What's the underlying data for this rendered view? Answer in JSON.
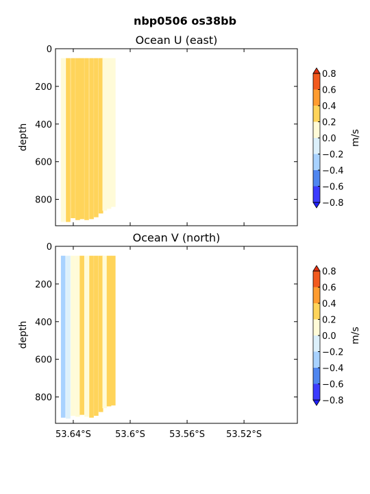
{
  "figure": {
    "suptitle": "nbp0506 os38bb"
  },
  "chart_data": [
    {
      "type": "heatmap",
      "title": "Ocean U (east)",
      "xlabel": "",
      "ylabel": "depth",
      "xlim": [
        53.6525,
        53.4825
      ],
      "ylim": [
        940,
        0
      ],
      "x_ticks": [
        53.64,
        53.6,
        53.56,
        53.52
      ],
      "x_tick_labels": [
        "53.64°S",
        "53.6°S",
        "53.56°S",
        "53.52°S"
      ],
      "y_ticks": [
        0,
        200,
        400,
        600,
        800
      ],
      "y_tick_labels": [
        "0",
        "200",
        "400",
        "600",
        "800"
      ],
      "colorbar": {
        "label": "m/s",
        "levels": [
          -0.8,
          -0.6,
          -0.4,
          -0.2,
          0.0,
          0.2,
          0.4,
          0.6,
          0.8
        ],
        "tick_labels": [
          "−0.8",
          "−0.6",
          "−0.4",
          "−0.2",
          "0.0",
          "0.2",
          "0.4",
          "0.6",
          "0.8"
        ],
        "colors": [
          "#3b3bff",
          "#4f86f0",
          "#a8d2ff",
          "#dcf0fb",
          "#fffbd8",
          "#ffd45a",
          "#ff9c30",
          "#f25a1e"
        ],
        "extend_low_color": "#2020ff",
        "extend_high_color": "#e03010"
      },
      "columns": [
        {
          "lat": 53.6487,
          "value": 0.1,
          "top": 50,
          "bottom": 920
        },
        {
          "lat": 53.6452,
          "value": 0.25,
          "top": 50,
          "bottom": 920
        },
        {
          "lat": 53.6418,
          "value": 0.25,
          "top": 50,
          "bottom": 900
        },
        {
          "lat": 53.6385,
          "value": 0.25,
          "top": 50,
          "bottom": 910
        },
        {
          "lat": 53.6355,
          "value": 0.25,
          "top": 50,
          "bottom": 905
        },
        {
          "lat": 53.6322,
          "value": 0.35,
          "top": 50,
          "bottom": 910
        },
        {
          "lat": 53.6288,
          "value": 0.3,
          "top": 50,
          "bottom": 905
        },
        {
          "lat": 53.6255,
          "value": 0.2,
          "top": 50,
          "bottom": 895
        },
        {
          "lat": 53.6222,
          "value": 0.2,
          "top": 50,
          "bottom": 875
        },
        {
          "lat": 53.6195,
          "value": 0.1,
          "top": 50,
          "bottom": 860
        },
        {
          "lat": 53.6165,
          "value": 0.0,
          "top": 50,
          "bottom": 850
        },
        {
          "lat": 53.6135,
          "value": 0.05,
          "top": 50,
          "bottom": 840
        }
      ]
    },
    {
      "type": "heatmap",
      "title": "Ocean V (north)",
      "xlabel": "",
      "ylabel": "depth",
      "xlim": [
        53.6525,
        53.4825
      ],
      "ylim": [
        940,
        0
      ],
      "x_ticks": [
        53.64,
        53.6,
        53.56,
        53.52
      ],
      "x_tick_labels": [
        "53.64°S",
        "53.6°S",
        "53.56°S",
        "53.52°S"
      ],
      "y_ticks": [
        0,
        200,
        400,
        600,
        800
      ],
      "y_tick_labels": [
        "0",
        "200",
        "400",
        "600",
        "800"
      ],
      "colorbar": {
        "label": "m/s",
        "levels": [
          -0.8,
          -0.6,
          -0.4,
          -0.2,
          0.0,
          0.2,
          0.4,
          0.6,
          0.8
        ],
        "tick_labels": [
          "−0.8",
          "−0.6",
          "−0.4",
          "−0.2",
          "0.0",
          "0.2",
          "0.4",
          "0.6",
          "0.8"
        ],
        "colors": [
          "#3b3bff",
          "#4f86f0",
          "#a8d2ff",
          "#dcf0fb",
          "#fffbd8",
          "#ffd45a",
          "#ff9c30",
          "#f25a1e"
        ],
        "extend_low_color": "#2020ff",
        "extend_high_color": "#e03010"
      },
      "columns": [
        {
          "lat": 53.6487,
          "value": -0.25,
          "top": 50,
          "bottom": 910
        },
        {
          "lat": 53.6452,
          "value": -0.1,
          "top": 50,
          "bottom": 915
        },
        {
          "lat": 53.6418,
          "value": 0.05,
          "top": 50,
          "bottom": 900
        },
        {
          "lat": 53.6385,
          "value": 0.1,
          "top": 50,
          "bottom": 905
        },
        {
          "lat": 53.6355,
          "value": 0.2,
          "top": 50,
          "bottom": 895
        },
        {
          "lat": 53.6322,
          "value": 0.1,
          "top": 50,
          "bottom": 905
        },
        {
          "lat": 53.6288,
          "value": 0.25,
          "top": 50,
          "bottom": 910
        },
        {
          "lat": 53.6255,
          "value": 0.3,
          "top": 50,
          "bottom": 900
        },
        {
          "lat": 53.6222,
          "value": 0.3,
          "top": 50,
          "bottom": 880
        },
        {
          "lat": 53.6195,
          "value": 0.15,
          "top": 50,
          "bottom": 860
        },
        {
          "lat": 53.6165,
          "value": 0.3,
          "top": 50,
          "bottom": 850
        },
        {
          "lat": 53.6135,
          "value": 0.35,
          "top": 50,
          "bottom": 845
        }
      ]
    }
  ]
}
